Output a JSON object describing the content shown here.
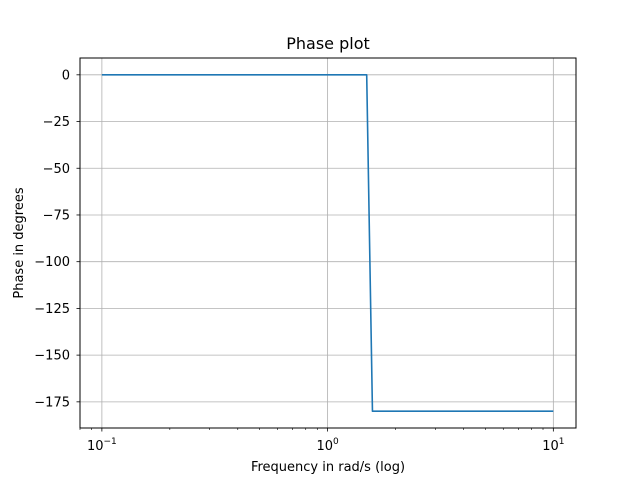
{
  "chart_data": {
    "type": "line",
    "title": "Phase plot",
    "xlabel": "Frequency in rad/s (log)",
    "ylabel": "Phase in degrees",
    "x_scale": "log",
    "xlim": [
      0.08,
      12.6
    ],
    "ylim": [
      -189,
      9
    ],
    "grid": true,
    "x_ticks": [
      {
        "value": 0.1,
        "base": "10",
        "exp": "−1"
      },
      {
        "value": 1,
        "base": "10",
        "exp": "0"
      },
      {
        "value": 10,
        "base": "10",
        "exp": "1"
      }
    ],
    "y_ticks": [
      {
        "value": 0,
        "label": "0"
      },
      {
        "value": -25,
        "label": "−25"
      },
      {
        "value": -50,
        "label": "−50"
      },
      {
        "value": -75,
        "label": "−75"
      },
      {
        "value": -100,
        "label": "−100"
      },
      {
        "value": -125,
        "label": "−125"
      },
      {
        "value": -150,
        "label": "−150"
      },
      {
        "value": -175,
        "label": "−175"
      }
    ],
    "series": [
      {
        "color": "#1f77b4",
        "x": [
          0.1,
          1.49,
          1.58,
          10
        ],
        "y": [
          0,
          0,
          -180,
          -180
        ]
      }
    ]
  }
}
